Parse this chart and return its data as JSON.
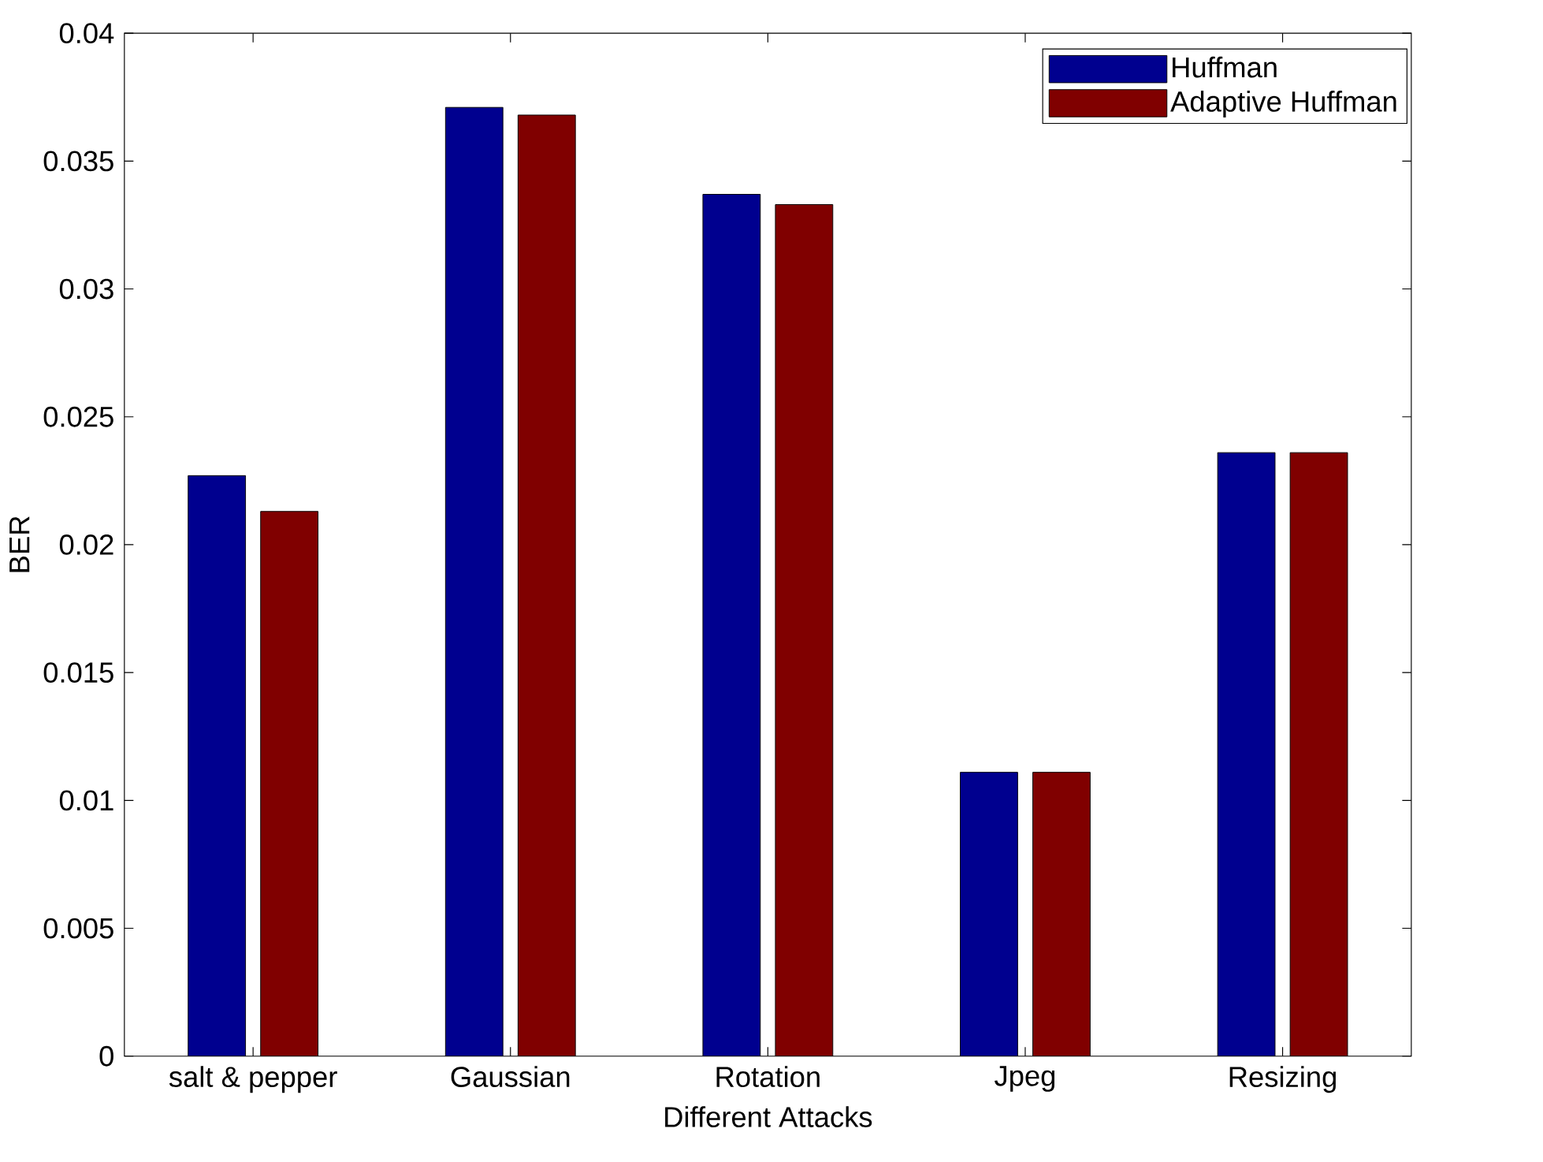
{
  "chart_data": {
    "type": "bar",
    "xlabel": "Different Attacks",
    "ylabel": "BER",
    "categories": [
      "salt & pepper",
      "Gaussian",
      "Rotation",
      "Jpeg",
      "Resizing"
    ],
    "series": [
      {
        "name": "Huffman",
        "color": "#00008f",
        "values": [
          0.0227,
          0.0371,
          0.0337,
          0.0111,
          0.0236
        ]
      },
      {
        "name": "Adaptive Huffman",
        "color": "#800000",
        "values": [
          0.0213,
          0.0368,
          0.0333,
          0.0111,
          0.0236
        ]
      }
    ],
    "ylim": [
      0,
      0.04
    ],
    "yticks": [
      0,
      0.005,
      0.01,
      0.015,
      0.02,
      0.025,
      0.03,
      0.035,
      0.04
    ],
    "legend": "top right"
  }
}
